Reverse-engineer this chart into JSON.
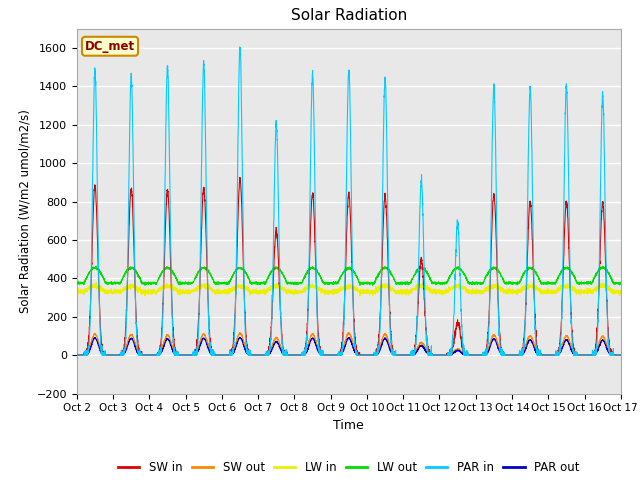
{
  "title": "Solar Radiation",
  "xlabel": "Time",
  "ylabel": "Solar Radiation (W/m2 umol/m2/s)",
  "ylim": [
    -200,
    1700
  ],
  "yticks": [
    -200,
    0,
    200,
    400,
    600,
    800,
    1000,
    1200,
    1400,
    1600
  ],
  "station_label": "DC_met",
  "x_tick_labels": [
    "Oct 2",
    "Oct 3",
    "Oct 4",
    "Oct 5",
    "Oct 6",
    "Oct 7",
    "Oct 8",
    "Oct 9",
    "Oct 10",
    "Oct 11",
    "Oct 12",
    "Oct 13",
    "Oct 14",
    "Oct 15",
    "Oct 16",
    "Oct 17"
  ],
  "colors": {
    "SW_in": "#dd0000",
    "SW_out": "#ff8800",
    "LW_in": "#eeee00",
    "LW_out": "#00dd00",
    "PAR_in": "#00ccff",
    "PAR_out": "#0000cc"
  },
  "plot_bg_color": "#e8e8e8",
  "num_days": 15,
  "points_per_day": 288,
  "sw_peaks": [
    880,
    870,
    860,
    870,
    920,
    650,
    840,
    840,
    830,
    500,
    170,
    840,
    800,
    800,
    790
  ],
  "par_peaks": [
    1480,
    1450,
    1500,
    1520,
    1600,
    1200,
    1460,
    1480,
    1440,
    910,
    700,
    1410,
    1390,
    1400,
    1360
  ],
  "sw_out_peaks": [
    110,
    108,
    105,
    110,
    115,
    90,
    110,
    115,
    110,
    65,
    30,
    105,
    100,
    100,
    98
  ],
  "par_out_peaks": [
    90,
    88,
    85,
    88,
    92,
    70,
    88,
    90,
    88,
    50,
    25,
    85,
    80,
    80,
    78
  ],
  "lw_in_base": 330,
  "lw_out_base": 375,
  "lw_in_day_extra": 30,
  "lw_out_day_extra": 80
}
